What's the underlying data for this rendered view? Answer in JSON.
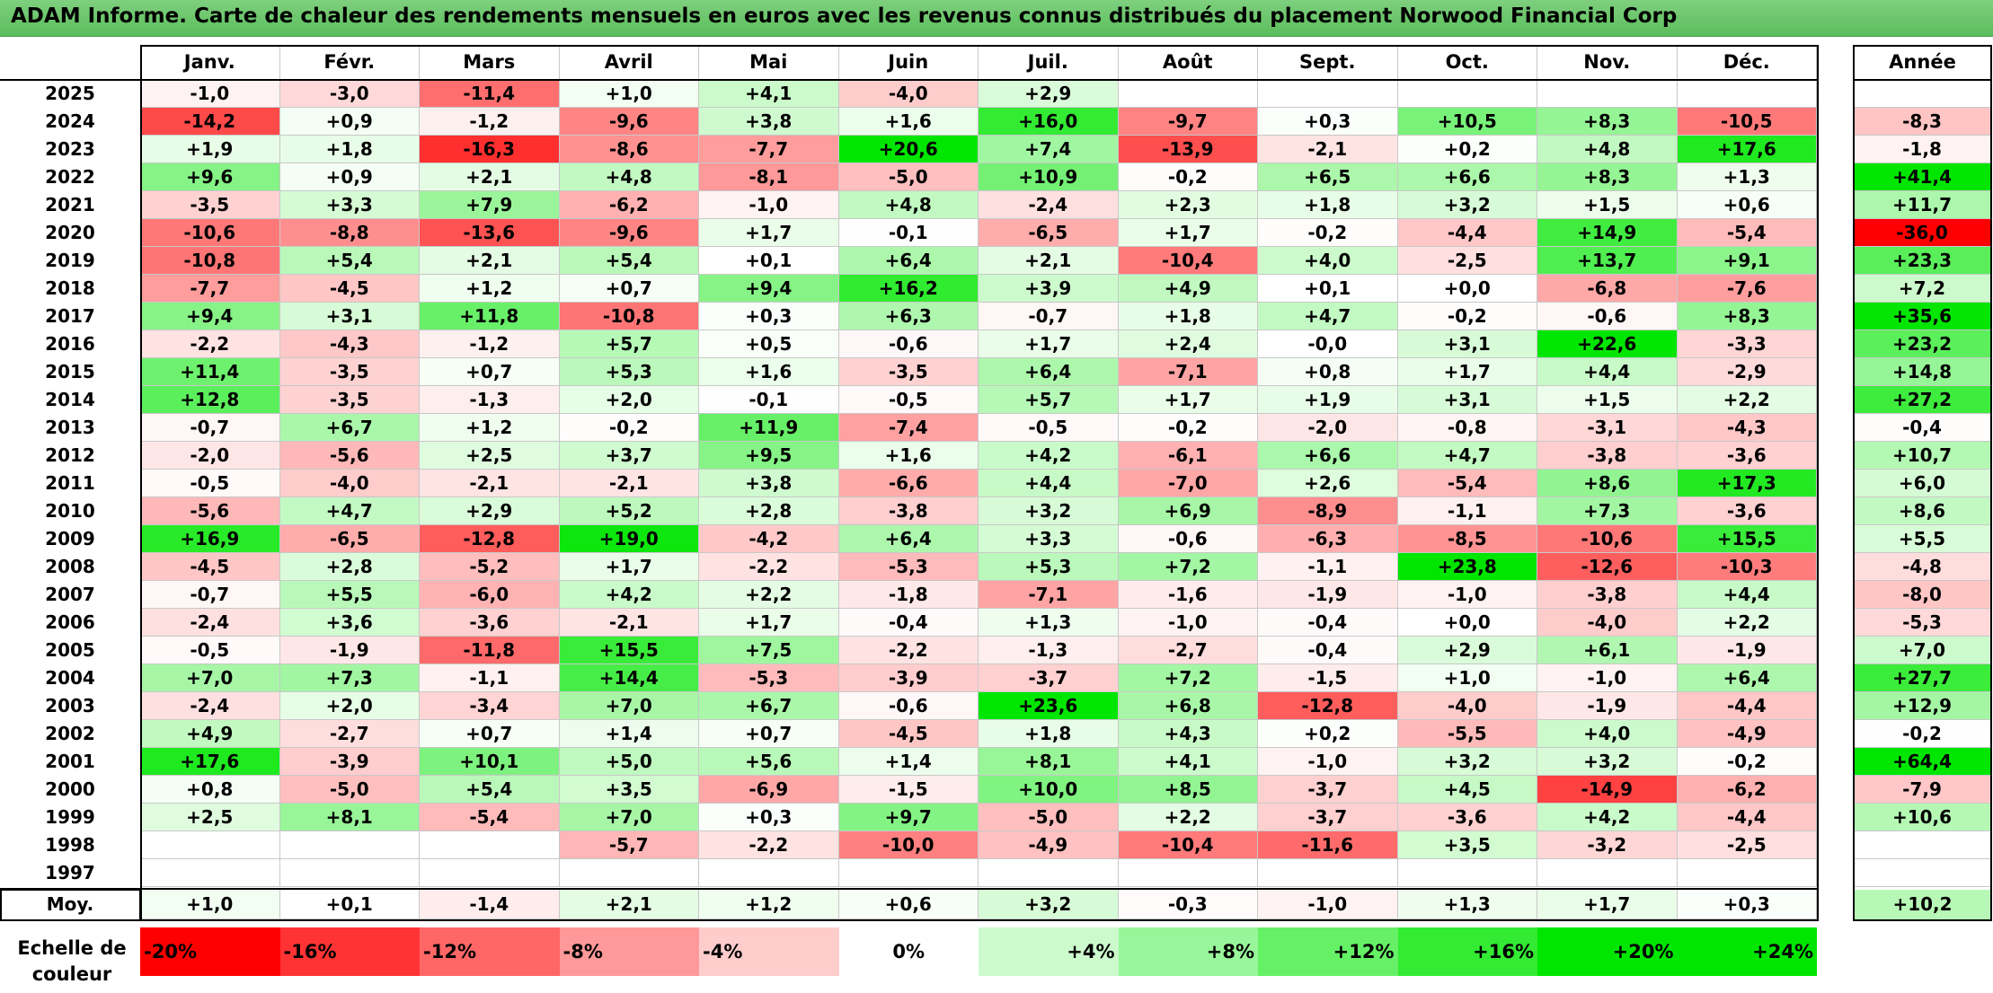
{
  "title": "ADAM Informe. Carte de chaleur des rendements mensuels en euros avec les revenus connus distribués du placement Norwood Financial Corp",
  "colors": {
    "title_bar": "#66c266",
    "negative_max": "#ff0000",
    "positive_max": "#00e000",
    "neutral": "#ffffff"
  },
  "chart_data": {
    "type": "heatmap",
    "title": "ADAM Informe. Carte de chaleur des rendements mensuels en euros avec les revenus connus distribués du placement Norwood Financial Corp",
    "months": [
      "Janv.",
      "Févr.",
      "Mars",
      "Avril",
      "Mai",
      "Juin",
      "Juil.",
      "Août",
      "Sept.",
      "Oct.",
      "Nov.",
      "Déc."
    ],
    "year_header": "Année",
    "rows": [
      {
        "year": "2025",
        "values": [
          "-1,0",
          "-3,0",
          "-11,4",
          "+1,0",
          "+4,1",
          "-4,0",
          "+2,9",
          "",
          "",
          "",
          "",
          ""
        ],
        "annual": ""
      },
      {
        "year": "2024",
        "values": [
          "-14,2",
          "+0,9",
          "-1,2",
          "-9,6",
          "+3,8",
          "+1,6",
          "+16,0",
          "-9,7",
          "+0,3",
          "+10,5",
          "+8,3",
          "-10,5"
        ],
        "annual": "-8,3"
      },
      {
        "year": "2023",
        "values": [
          "+1,9",
          "+1,8",
          "-16,3",
          "-8,6",
          "-7,7",
          "+20,6",
          "+7,4",
          "-13,9",
          "-2,1",
          "+0,2",
          "+4,8",
          "+17,6"
        ],
        "annual": "-1,8"
      },
      {
        "year": "2022",
        "values": [
          "+9,6",
          "+0,9",
          "+2,1",
          "+4,8",
          "-8,1",
          "-5,0",
          "+10,9",
          "-0,2",
          "+6,5",
          "+6,6",
          "+8,3",
          "+1,3"
        ],
        "annual": "+41,4"
      },
      {
        "year": "2021",
        "values": [
          "-3,5",
          "+3,3",
          "+7,9",
          "-6,2",
          "-1,0",
          "+4,8",
          "-2,4",
          "+2,3",
          "+1,8",
          "+3,2",
          "+1,5",
          "+0,6"
        ],
        "annual": "+11,7"
      },
      {
        "year": "2020",
        "values": [
          "-10,6",
          "-8,8",
          "-13,6",
          "-9,6",
          "+1,7",
          "-0,1",
          "-6,5",
          "+1,7",
          "-0,2",
          "-4,4",
          "+14,9",
          "-5,4"
        ],
        "annual": "-36,0"
      },
      {
        "year": "2019",
        "values": [
          "-10,8",
          "+5,4",
          "+2,1",
          "+5,4",
          "+0,1",
          "+6,4",
          "+2,1",
          "-10,4",
          "+4,0",
          "-2,5",
          "+13,7",
          "+9,1"
        ],
        "annual": "+23,3"
      },
      {
        "year": "2018",
        "values": [
          "-7,7",
          "-4,5",
          "+1,2",
          "+0,7",
          "+9,4",
          "+16,2",
          "+3,9",
          "+4,9",
          "+0,1",
          "+0,0",
          "-6,8",
          "-7,6"
        ],
        "annual": "+7,2"
      },
      {
        "year": "2017",
        "values": [
          "+9,4",
          "+3,1",
          "+11,8",
          "-10,8",
          "+0,3",
          "+6,3",
          "-0,7",
          "+1,8",
          "+4,7",
          "-0,2",
          "-0,6",
          "+8,3"
        ],
        "annual": "+35,6"
      },
      {
        "year": "2016",
        "values": [
          "-2,2",
          "-4,3",
          "-1,2",
          "+5,7",
          "+0,5",
          "-0,6",
          "+1,7",
          "+2,4",
          "-0,0",
          "+3,1",
          "+22,6",
          "-3,3"
        ],
        "annual": "+23,2"
      },
      {
        "year": "2015",
        "values": [
          "+11,4",
          "-3,5",
          "+0,7",
          "+5,3",
          "+1,6",
          "-3,5",
          "+6,4",
          "-7,1",
          "+0,8",
          "+1,7",
          "+4,4",
          "-2,9"
        ],
        "annual": "+14,8"
      },
      {
        "year": "2014",
        "values": [
          "+12,8",
          "-3,5",
          "-1,3",
          "+2,0",
          "-0,1",
          "-0,5",
          "+5,7",
          "+1,7",
          "+1,9",
          "+3,1",
          "+1,5",
          "+2,2"
        ],
        "annual": "+27,2"
      },
      {
        "year": "2013",
        "values": [
          "-0,7",
          "+6,7",
          "+1,2",
          "-0,2",
          "+11,9",
          "-7,4",
          "-0,5",
          "-0,2",
          "-2,0",
          "-0,8",
          "-3,1",
          "-4,3"
        ],
        "annual": "-0,4"
      },
      {
        "year": "2012",
        "values": [
          "-2,0",
          "-5,6",
          "+2,5",
          "+3,7",
          "+9,5",
          "+1,6",
          "+4,2",
          "-6,1",
          "+6,6",
          "+4,7",
          "-3,8",
          "-3,6"
        ],
        "annual": "+10,7"
      },
      {
        "year": "2011",
        "values": [
          "-0,5",
          "-4,0",
          "-2,1",
          "-2,1",
          "+3,8",
          "-6,6",
          "+4,4",
          "-7,0",
          "+2,6",
          "-5,4",
          "+8,6",
          "+17,3"
        ],
        "annual": "+6,0"
      },
      {
        "year": "2010",
        "values": [
          "-5,6",
          "+4,7",
          "+2,9",
          "+5,2",
          "+2,8",
          "-3,8",
          "+3,2",
          "+6,9",
          "-8,9",
          "-1,1",
          "+7,3",
          "-3,6"
        ],
        "annual": "+8,6"
      },
      {
        "year": "2009",
        "values": [
          "+16,9",
          "-6,5",
          "-12,8",
          "+19,0",
          "-4,2",
          "+6,4",
          "+3,3",
          "-0,6",
          "-6,3",
          "-8,5",
          "-10,6",
          "+15,5"
        ],
        "annual": "+5,5"
      },
      {
        "year": "2008",
        "values": [
          "-4,5",
          "+2,8",
          "-5,2",
          "+1,7",
          "-2,2",
          "-5,3",
          "+5,3",
          "+7,2",
          "-1,1",
          "+23,8",
          "-12,6",
          "-10,3"
        ],
        "annual": "-4,8"
      },
      {
        "year": "2007",
        "values": [
          "-0,7",
          "+5,5",
          "-6,0",
          "+4,2",
          "+2,2",
          "-1,8",
          "-7,1",
          "-1,6",
          "-1,9",
          "-1,0",
          "-3,8",
          "+4,4"
        ],
        "annual": "-8,0"
      },
      {
        "year": "2006",
        "values": [
          "-2,4",
          "+3,6",
          "-3,6",
          "-2,1",
          "+1,7",
          "-0,4",
          "+1,3",
          "-1,0",
          "-0,4",
          "+0,0",
          "-4,0",
          "+2,2"
        ],
        "annual": "-5,3"
      },
      {
        "year": "2005",
        "values": [
          "-0,5",
          "-1,9",
          "-11,8",
          "+15,5",
          "+7,5",
          "-2,2",
          "-1,3",
          "-2,7",
          "-0,4",
          "+2,9",
          "+6,1",
          "-1,9"
        ],
        "annual": "+7,0"
      },
      {
        "year": "2004",
        "values": [
          "+7,0",
          "+7,3",
          "-1,1",
          "+14,4",
          "-5,3",
          "-3,9",
          "-3,7",
          "+7,2",
          "-1,5",
          "+1,0",
          "-1,0",
          "+6,4"
        ],
        "annual": "+27,7"
      },
      {
        "year": "2003",
        "values": [
          "-2,4",
          "+2,0",
          "-3,4",
          "+7,0",
          "+6,7",
          "-0,6",
          "+23,6",
          "+6,8",
          "-12,8",
          "-4,0",
          "-1,9",
          "-4,4"
        ],
        "annual": "+12,9"
      },
      {
        "year": "2002",
        "values": [
          "+4,9",
          "-2,7",
          "+0,7",
          "+1,4",
          "+0,7",
          "-4,5",
          "+1,8",
          "+4,3",
          "+0,2",
          "-5,5",
          "+4,0",
          "-4,9"
        ],
        "annual": "-0,2"
      },
      {
        "year": "2001",
        "values": [
          "+17,6",
          "-3,9",
          "+10,1",
          "+5,0",
          "+5,6",
          "+1,4",
          "+8,1",
          "+4,1",
          "-1,0",
          "+3,2",
          "+3,2",
          "-0,2"
        ],
        "annual": "+64,4"
      },
      {
        "year": "2000",
        "values": [
          "+0,8",
          "-5,0",
          "+5,4",
          "+3,5",
          "-6,9",
          "-1,5",
          "+10,0",
          "+8,5",
          "-3,7",
          "+4,5",
          "-14,9",
          "-6,2"
        ],
        "annual": "-7,9"
      },
      {
        "year": "1999",
        "values": [
          "+2,5",
          "+8,1",
          "-5,4",
          "+7,0",
          "+0,3",
          "+9,7",
          "-5,0",
          "+2,2",
          "-3,7",
          "-3,6",
          "+4,2",
          "-4,4"
        ],
        "annual": "+10,6"
      },
      {
        "year": "1998",
        "values": [
          "",
          "",
          "",
          "-5,7",
          "-2,2",
          "-10,0",
          "-4,9",
          "-10,4",
          "-11,6",
          "+3,5",
          "-3,2",
          "-2,5"
        ],
        "annual": ""
      },
      {
        "year": "1997",
        "values": [
          "",
          "",
          "",
          "",
          "",
          "",
          "",
          "",
          "",
          "",
          "",
          ""
        ],
        "annual": ""
      }
    ],
    "average_label": "Moy.",
    "averages": [
      "+1,0",
      "+0,1",
      "-1,4",
      "+2,1",
      "+1,2",
      "+0,6",
      "+3,2",
      "-0,3",
      "-1,0",
      "+1,3",
      "+1,7",
      "+0,3"
    ],
    "average_annual": "+10,2",
    "color_scale_label": "Echelle de couleur",
    "color_scale": [
      "-20%",
      "-16%",
      "-12%",
      "-8%",
      "-4%",
      "0%",
      "+4%",
      "+8%",
      "+12%",
      "+16%",
      "+20%",
      "+24%"
    ]
  }
}
